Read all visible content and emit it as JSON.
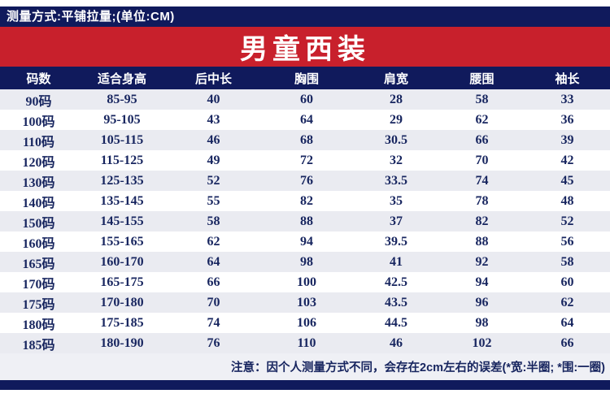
{
  "top_bar": {
    "text": "测量方式:平铺拉量;(单位:CM)"
  },
  "banner": {
    "title": "男童西装"
  },
  "table": {
    "headers": [
      "码数",
      "适合身高",
      "后中长",
      "胸围",
      "肩宽",
      "腰围",
      "袖长"
    ],
    "rows": [
      [
        "90码",
        "85-95",
        "40",
        "60",
        "28",
        "58",
        "33"
      ],
      [
        "100码",
        "95-105",
        "43",
        "64",
        "29",
        "62",
        "36"
      ],
      [
        "110码",
        "105-115",
        "46",
        "68",
        "30.5",
        "66",
        "39"
      ],
      [
        "120码",
        "115-125",
        "49",
        "72",
        "32",
        "70",
        "42"
      ],
      [
        "130码",
        "125-135",
        "52",
        "76",
        "33.5",
        "74",
        "45"
      ],
      [
        "140码",
        "135-145",
        "55",
        "82",
        "35",
        "78",
        "48"
      ],
      [
        "150码",
        "145-155",
        "58",
        "88",
        "37",
        "82",
        "52"
      ],
      [
        "160码",
        "155-165",
        "62",
        "94",
        "39.5",
        "88",
        "56"
      ],
      [
        "165码",
        "160-170",
        "64",
        "98",
        "41",
        "92",
        "58"
      ],
      [
        "170码",
        "165-175",
        "66",
        "100",
        "42.5",
        "94",
        "60"
      ],
      [
        "175码",
        "170-180",
        "70",
        "103",
        "43.5",
        "96",
        "62"
      ],
      [
        "180码",
        "175-185",
        "74",
        "106",
        "44.5",
        "98",
        "64"
      ],
      [
        "185码",
        "180-190",
        "76",
        "110",
        "46",
        "102",
        "66"
      ]
    ]
  },
  "note": {
    "text": "注意：因个人测量方式不同，会存在2cm左右的误差(*宽:半圈; *围:一圈)"
  },
  "colors": {
    "navy": "#101a5c",
    "red": "#c8202c",
    "stripe": "#eaebf1",
    "cell_text": "#17255f"
  }
}
